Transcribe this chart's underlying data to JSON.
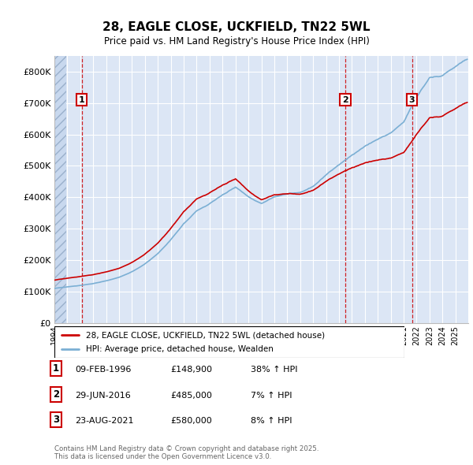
{
  "title": "28, EAGLE CLOSE, UCKFIELD, TN22 5WL",
  "subtitle": "Price paid vs. HM Land Registry's House Price Index (HPI)",
  "ylim": [
    0,
    850000
  ],
  "yticks": [
    0,
    100000,
    200000,
    300000,
    400000,
    500000,
    600000,
    700000,
    800000
  ],
  "background_color": "#dce6f5",
  "grid_color": "#ffffff",
  "red_line_color": "#cc0000",
  "blue_line_color": "#7bafd4",
  "sale_times": [
    1996.117,
    2016.496,
    2021.644
  ],
  "sale_prices": [
    148900,
    485000,
    580000
  ],
  "sale_labels": [
    "1",
    "2",
    "3"
  ],
  "sale_pct": [
    "38% ↑ HPI",
    "7% ↑ HPI",
    "8% ↑ HPI"
  ],
  "sale_date_labels": [
    "09-FEB-1996",
    "29-JUN-2016",
    "23-AUG-2021"
  ],
  "sale_price_labels": [
    "£148,900",
    "£485,000",
    "£580,000"
  ],
  "legend_red": "28, EAGLE CLOSE, UCKFIELD, TN22 5WL (detached house)",
  "legend_blue": "HPI: Average price, detached house, Wealden",
  "footer": "Contains HM Land Registry data © Crown copyright and database right 2025.\nThis data is licensed under the Open Government Licence v3.0.",
  "xstart": 1994.0,
  "xend": 2026.0
}
